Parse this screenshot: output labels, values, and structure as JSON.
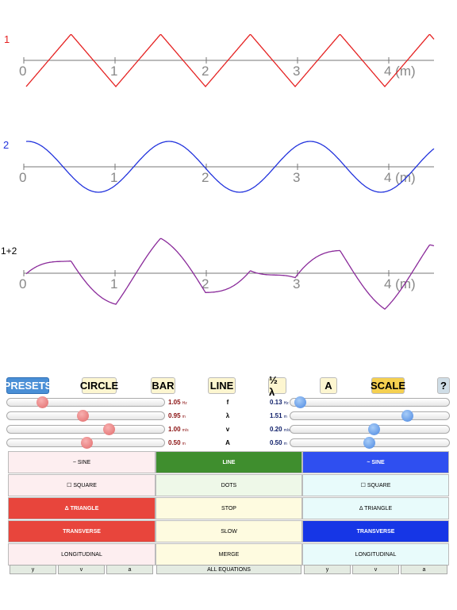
{
  "graphs": [
    {
      "label": "1",
      "ticks": [
        "0",
        "1",
        "2",
        "3",
        "4 (m)"
      ]
    },
    {
      "label": "2",
      "ticks": [
        "0",
        "1",
        "2",
        "3",
        "4 (m)"
      ]
    },
    {
      "label": "1+2",
      "ticks": [
        "0",
        "1",
        "2",
        "3",
        "4 (m)"
      ]
    }
  ],
  "toolbar": [
    "PRESETS",
    "CIRCLE",
    "BAR",
    "LINE",
    "½ λ",
    "A",
    "SCALE",
    "?"
  ],
  "sliders": [
    {
      "left": {
        "value": "1.05",
        "unit": "Hz"
      },
      "name": "f",
      "right": {
        "value": "0.13",
        "unit": "Hz"
      }
    },
    {
      "left": {
        "value": "0.95",
        "unit": "m"
      },
      "name": "λ",
      "right": {
        "value": "1.51",
        "unit": "m"
      }
    },
    {
      "left": {
        "value": "1.00",
        "unit": "m/s"
      },
      "name": "v",
      "right": {
        "value": "0.20",
        "unit": "m/s"
      }
    },
    {
      "left": {
        "value": "0.50",
        "unit": "m"
      },
      "name": "A",
      "right": {
        "value": "0.50",
        "unit": "m"
      }
    }
  ],
  "buttons": {
    "left": [
      "~ SINE",
      "☐ SQUARE",
      "Δ TRIANGLE",
      "TRANSVERSE",
      "LONGITUDINAL"
    ],
    "middle": [
      "LINE",
      "DOTS",
      "STOP",
      "SLOW",
      "MERGE"
    ],
    "right": [
      "~ SINE",
      "☐ SQUARE",
      "Δ TRIANGLE",
      "TRANSVERSE",
      "LONGITUDINAL"
    ]
  },
  "bottom": {
    "left": [
      "y",
      "v",
      "a"
    ],
    "middle": "ALL EQUATIONS",
    "right": [
      "y",
      "v",
      "a"
    ]
  }
}
